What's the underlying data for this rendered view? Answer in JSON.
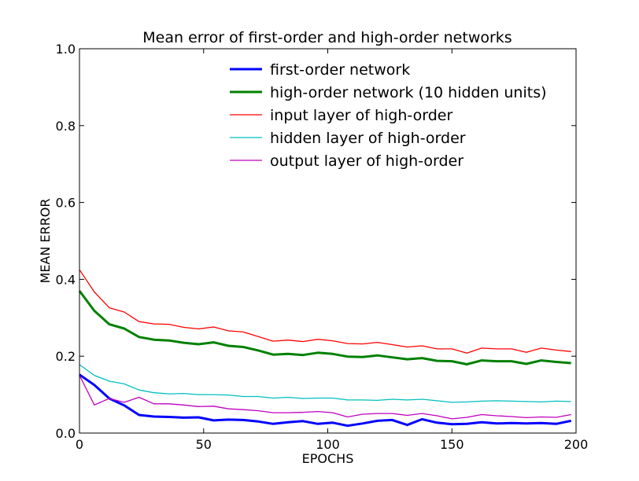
{
  "chart_data": {
    "type": "line",
    "title": "Mean error of first-order and high-order networks",
    "xlabel": "EPOCHS",
    "ylabel": "MEAN ERROR",
    "xlim": [
      0,
      200
    ],
    "ylim": [
      0,
      1.0
    ],
    "xticks": [
      "0",
      "50",
      "100",
      "150",
      "200"
    ],
    "yticks": [
      "0.0",
      "0.2",
      "0.4",
      "0.6",
      "0.8",
      "1.0"
    ],
    "grid": false,
    "legend_position": "top-center",
    "x": [
      0,
      6,
      12,
      18,
      24,
      30,
      36,
      42,
      48,
      54,
      60,
      66,
      72,
      78,
      84,
      90,
      96,
      102,
      108,
      114,
      120,
      126,
      132,
      138,
      144,
      150,
      156,
      162,
      168,
      174,
      180,
      186,
      192,
      198
    ],
    "series": [
      {
        "name": "first-order network",
        "color": "#0000ff",
        "width": 3,
        "values": [
          0.152,
          0.125,
          0.09,
          0.072,
          0.047,
          0.043,
          0.042,
          0.04,
          0.041,
          0.033,
          0.035,
          0.034,
          0.03,
          0.024,
          0.028,
          0.031,
          0.024,
          0.027,
          0.019,
          0.025,
          0.032,
          0.034,
          0.021,
          0.036,
          0.027,
          0.023,
          0.024,
          0.028,
          0.025,
          0.026,
          0.025,
          0.026,
          0.024,
          0.032
        ]
      },
      {
        "name": "high-order network (10 hidden units)",
        "color": "#008000",
        "width": 3,
        "values": [
          0.37,
          0.318,
          0.283,
          0.272,
          0.25,
          0.243,
          0.241,
          0.235,
          0.231,
          0.236,
          0.227,
          0.224,
          0.215,
          0.204,
          0.206,
          0.203,
          0.209,
          0.206,
          0.199,
          0.198,
          0.202,
          0.197,
          0.192,
          0.195,
          0.188,
          0.187,
          0.179,
          0.189,
          0.187,
          0.187,
          0.18,
          0.189,
          0.185,
          0.182
        ]
      },
      {
        "name": "input layer of high-order",
        "color": "#ff0000",
        "width": 1.3,
        "values": [
          0.425,
          0.367,
          0.326,
          0.315,
          0.29,
          0.284,
          0.283,
          0.275,
          0.271,
          0.276,
          0.266,
          0.263,
          0.251,
          0.239,
          0.242,
          0.238,
          0.244,
          0.24,
          0.233,
          0.232,
          0.236,
          0.23,
          0.224,
          0.227,
          0.219,
          0.219,
          0.208,
          0.221,
          0.219,
          0.219,
          0.21,
          0.221,
          0.216,
          0.212
        ]
      },
      {
        "name": "hidden layer of high-order",
        "color": "#00bfbf",
        "width": 1.3,
        "values": [
          0.178,
          0.15,
          0.135,
          0.128,
          0.112,
          0.105,
          0.102,
          0.103,
          0.1,
          0.1,
          0.099,
          0.095,
          0.095,
          0.091,
          0.093,
          0.09,
          0.091,
          0.091,
          0.086,
          0.086,
          0.085,
          0.088,
          0.086,
          0.088,
          0.084,
          0.08,
          0.081,
          0.083,
          0.084,
          0.083,
          0.082,
          0.081,
          0.083,
          0.082
        ]
      },
      {
        "name": "output layer of high-order",
        "color": "#bf00bf",
        "width": 1.3,
        "values": [
          0.15,
          0.073,
          0.09,
          0.08,
          0.093,
          0.076,
          0.076,
          0.073,
          0.069,
          0.07,
          0.063,
          0.061,
          0.058,
          0.053,
          0.053,
          0.054,
          0.056,
          0.053,
          0.042,
          0.049,
          0.051,
          0.051,
          0.046,
          0.051,
          0.045,
          0.037,
          0.041,
          0.048,
          0.045,
          0.043,
          0.04,
          0.042,
          0.041,
          0.048
        ]
      }
    ]
  }
}
